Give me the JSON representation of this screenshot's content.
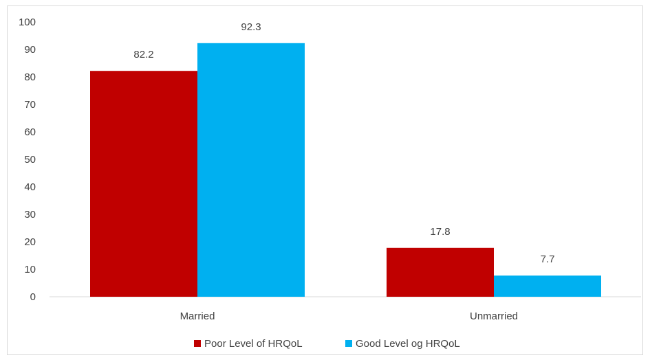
{
  "chart_data": {
    "type": "bar",
    "categories": [
      "Married",
      "Unmarried"
    ],
    "series": [
      {
        "name": "Poor Level of HRQoL",
        "values": [
          82.2,
          17.8
        ],
        "color": "#c00000"
      },
      {
        "name": "Good Level og HRQoL",
        "values": [
          92.3,
          7.7
        ],
        "color": "#00b0f0"
      }
    ],
    "data_labels": [
      [
        "82.2",
        "17.8"
      ],
      [
        "92.3",
        "7.7"
      ]
    ],
    "ylim": [
      0,
      100
    ],
    "yticks": [
      "0",
      "10",
      "20",
      "30",
      "40",
      "50",
      "60",
      "70",
      "80",
      "90",
      "100"
    ],
    "grid": false,
    "legend_position": "bottom",
    "title": "",
    "xlabel": "",
    "ylabel": ""
  }
}
